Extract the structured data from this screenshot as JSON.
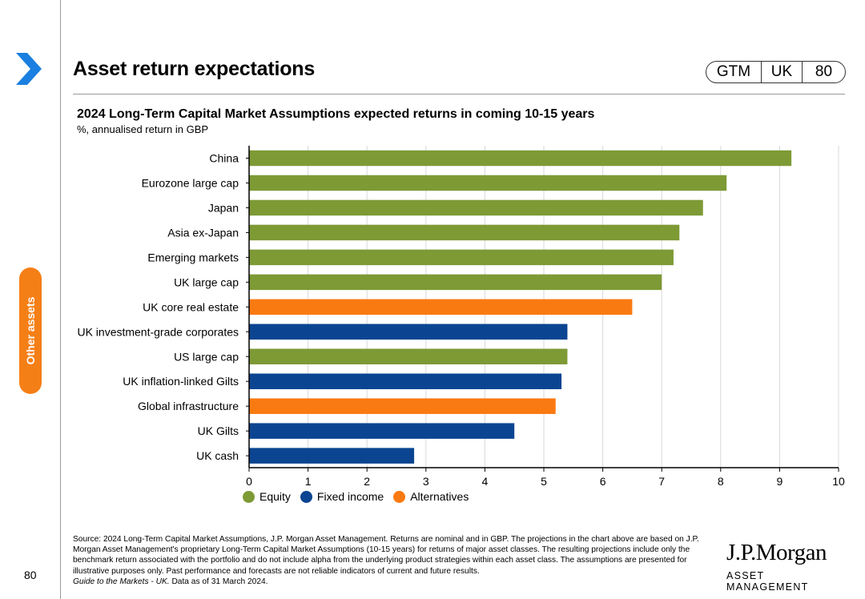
{
  "header": {
    "title": "Asset return expectations",
    "badge": [
      "GTM",
      "UK",
      "80"
    ]
  },
  "side_tab": "Other assets",
  "page_number": "80",
  "colors": {
    "Equity": "#7d9a35",
    "Fixed income": "#0b4591",
    "Alternatives": "#fa7a12",
    "accent": "#1a7fe0",
    "tab": "#f57f17"
  },
  "chart_data": {
    "type": "bar",
    "orientation": "horizontal",
    "title": "2024 Long-Term Capital Market Assumptions expected returns in coming 10-15 years",
    "subtitle": "%, annualised return in GBP",
    "xlim": [
      0,
      10
    ],
    "xticks": [
      0,
      1,
      2,
      3,
      4,
      5,
      6,
      7,
      8,
      9,
      10
    ],
    "grid": true,
    "legend": [
      "Equity",
      "Fixed income",
      "Alternatives"
    ],
    "legend_position": "bottom-left",
    "categories": [
      "China",
      "Eurozone large cap",
      "Japan",
      "Asia ex-Japan",
      "Emerging markets",
      "UK large cap",
      "UK core real estate",
      "UK investment-grade corporates",
      "US large cap",
      "UK inflation-linked Gilts",
      "Global infrastructure",
      "UK Gilts",
      "UK cash"
    ],
    "values": [
      9.2,
      8.1,
      7.7,
      7.3,
      7.2,
      7.0,
      6.5,
      5.4,
      5.4,
      5.3,
      5.2,
      4.5,
      2.8
    ],
    "groups": [
      "Equity",
      "Equity",
      "Equity",
      "Equity",
      "Equity",
      "Equity",
      "Alternatives",
      "Fixed income",
      "Equity",
      "Fixed income",
      "Alternatives",
      "Fixed income",
      "Fixed income"
    ]
  },
  "footer": {
    "source": "Source: 2024 Long-Term Capital Market Assumptions, J.P. Morgan Asset Management. Returns are nominal and in GBP. The projections in the chart above are based on J.P. Morgan Asset Management's proprietary Long-Term Capital Market Assumptions (10-15 years) for returns of major asset classes. The resulting projections include only the benchmark return associated with the portfolio and do not include alpha from the underlying product strategies within each asset class. The assumptions are presented for illustrative purposes only. Past performance and forecasts are not reliable indicators of current and future results.",
    "guide": "Guide to the Markets - UK.",
    "data_as_of": " Data as of 31 March 2024."
  },
  "logo": {
    "line1": "J.P.Morgan",
    "line2": "ASSET MANAGEMENT"
  }
}
